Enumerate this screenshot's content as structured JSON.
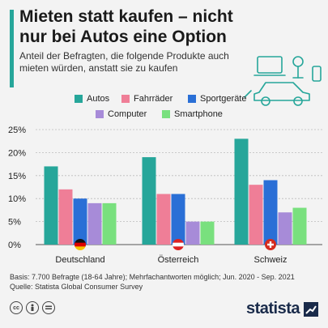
{
  "header": {
    "title": "Mieten statt kaufen – nicht nur bei Autos eine Option",
    "subtitle": "Anteil der Befragten, die folgende Produkte auch mieten würden, anstatt sie zu kaufen"
  },
  "colors": {
    "accent": "#26a69a",
    "Autos": "#26a69a",
    "Fahrräder": "#ef7e97",
    "Sportgeräte": "#2a6fd6",
    "Computer": "#a78bd8",
    "Smartphone": "#79e07e"
  },
  "chart_data": {
    "type": "bar",
    "categories": [
      "Deutschland",
      "Österreich",
      "Schweiz"
    ],
    "series": [
      {
        "name": "Autos",
        "values": [
          17,
          19,
          23
        ]
      },
      {
        "name": "Fahrräder",
        "values": [
          12,
          11,
          13
        ]
      },
      {
        "name": "Sportgeräte",
        "values": [
          10,
          11,
          14
        ]
      },
      {
        "name": "Computer",
        "values": [
          9,
          5,
          7
        ]
      },
      {
        "name": "Smartphone",
        "values": [
          9,
          5,
          8
        ]
      }
    ],
    "yticks": [
      "0%",
      "5%",
      "10%",
      "15%",
      "20%",
      "25%"
    ],
    "ylim": [
      0,
      25
    ],
    "grid": true,
    "legend_position": "top"
  },
  "footer": {
    "basis": "Basis: 7.700 Befragte (18-64 Jahre); Mehrfachantworten möglich; Jun. 2020 - Sep. 2021",
    "source": "Quelle: Statista Global Consumer Survey"
  },
  "icons": {
    "license": [
      "cc-icon",
      "by-icon",
      "nd-icon"
    ],
    "flags": [
      "flag-germany-icon",
      "flag-austria-icon",
      "flag-switzerland-icon"
    ]
  },
  "brand": {
    "name": "statista"
  }
}
